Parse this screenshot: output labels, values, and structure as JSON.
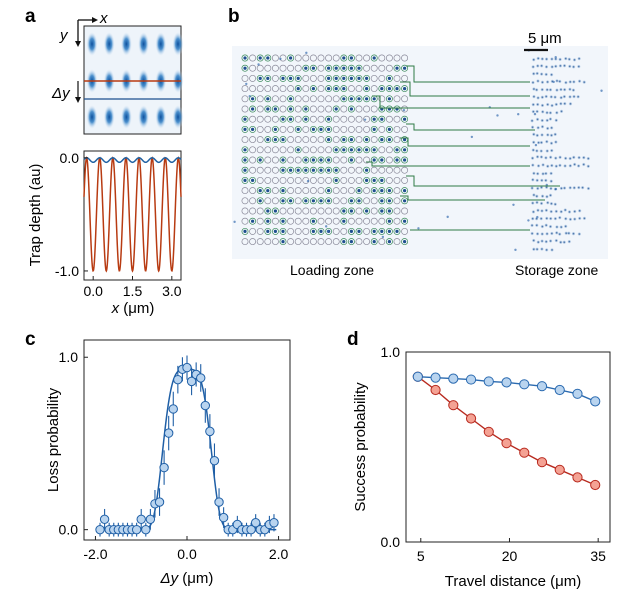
{
  "panels": {
    "a": {
      "label": "a",
      "axis_x": "x",
      "axis_y": "y",
      "delta": "Δy",
      "ylabel": "Trap depth (au)",
      "xlabel_sym": "x",
      "xlabel_unit": "(μm)"
    },
    "b": {
      "label": "b",
      "scalebar": "5 μm",
      "loading_label": "Loading zone",
      "storage_label": "Storage zone"
    },
    "c": {
      "label": "c",
      "ylabel": "Loss probability",
      "xlabel_sym": "Δy",
      "xlabel_unit": "(μm)"
    },
    "d": {
      "label": "d",
      "ylabel": "Success probability",
      "xlabel": "Travel distance (μm)"
    }
  },
  "chart_data": [
    {
      "panel": "a-bottom",
      "type": "line",
      "x_ticks": [
        "0.0",
        "1.5",
        "3.0"
      ],
      "y_ticks": [
        "0.0",
        "-1.0"
      ],
      "ylim": [
        -1.08,
        0.06
      ],
      "xlim": [
        -0.35,
        3.35
      ],
      "series": [
        {
          "color": "#b83b12",
          "values": "cos-shaped traps with period 0.5 μm from 0 to -1.0"
        },
        {
          "color": "#2062a3",
          "values": "shallow modulation near 0.0"
        }
      ]
    },
    {
      "panel": "c",
      "type": "scatter",
      "x_ticks": [
        "-2.0",
        "0.0",
        "2.0"
      ],
      "y_ticks": [
        "0.0",
        "1.0"
      ],
      "xlim": [
        -2.25,
        2.25
      ],
      "ylim": [
        -0.06,
        1.1
      ],
      "x": [
        -1.9,
        -1.8,
        -1.7,
        -1.6,
        -1.5,
        -1.4,
        -1.3,
        -1.2,
        -1.1,
        -1.0,
        -0.9,
        -0.8,
        -0.7,
        -0.6,
        -0.5,
        -0.4,
        -0.3,
        -0.2,
        -0.1,
        0.0,
        0.1,
        0.2,
        0.3,
        0.4,
        0.5,
        0.6,
        0.7,
        0.8,
        0.9,
        1.0,
        1.1,
        1.2,
        1.3,
        1.4,
        1.5,
        1.6,
        1.7,
        1.8,
        1.9
      ],
      "y": [
        0.0,
        0.06,
        0.0,
        0.0,
        0.0,
        0.0,
        0.0,
        0.0,
        0.0,
        0.06,
        0.0,
        0.06,
        0.15,
        0.16,
        0.36,
        0.56,
        0.7,
        0.87,
        0.93,
        0.94,
        0.86,
        0.9,
        0.88,
        0.72,
        0.57,
        0.4,
        0.16,
        0.07,
        0.0,
        0.0,
        0.03,
        0.0,
        0.0,
        0.0,
        0.04,
        0.0,
        0.0,
        0.03,
        0.04
      ],
      "error": [
        0.04,
        0.06,
        0.04,
        0.04,
        0.04,
        0.04,
        0.04,
        0.04,
        0.04,
        0.06,
        0.04,
        0.06,
        0.08,
        0.08,
        0.1,
        0.1,
        0.1,
        0.08,
        0.07,
        0.07,
        0.08,
        0.07,
        0.08,
        0.1,
        0.1,
        0.1,
        0.08,
        0.06,
        0.04,
        0.04,
        0.05,
        0.04,
        0.04,
        0.04,
        0.05,
        0.04,
        0.04,
        0.05,
        0.05
      ],
      "fit": "gaussian-like curve",
      "color": "#1f5fa6",
      "marker_fill": "#b9d4ef"
    },
    {
      "panel": "d",
      "type": "line",
      "x_ticks": [
        "5",
        "20",
        "35"
      ],
      "y_ticks": [
        "0.0",
        "1.0"
      ],
      "xlim": [
        2.5,
        37
      ],
      "ylim": [
        0.0,
        1.0
      ],
      "x": [
        4.5,
        7.5,
        10.5,
        13.5,
        16.5,
        19.5,
        22.5,
        25.5,
        28.5,
        31.5,
        34.5
      ],
      "series": [
        {
          "color": "#2a6ab0",
          "fill": "#b9d4ef",
          "values": [
            0.87,
            0.865,
            0.86,
            0.855,
            0.845,
            0.84,
            0.83,
            0.82,
            0.8,
            0.78,
            0.74
          ]
        },
        {
          "color": "#b82a1f",
          "fill": "#f4a294",
          "values": [
            0.87,
            0.8,
            0.72,
            0.65,
            0.58,
            0.52,
            0.47,
            0.42,
            0.38,
            0.34,
            0.3
          ]
        }
      ]
    }
  ]
}
